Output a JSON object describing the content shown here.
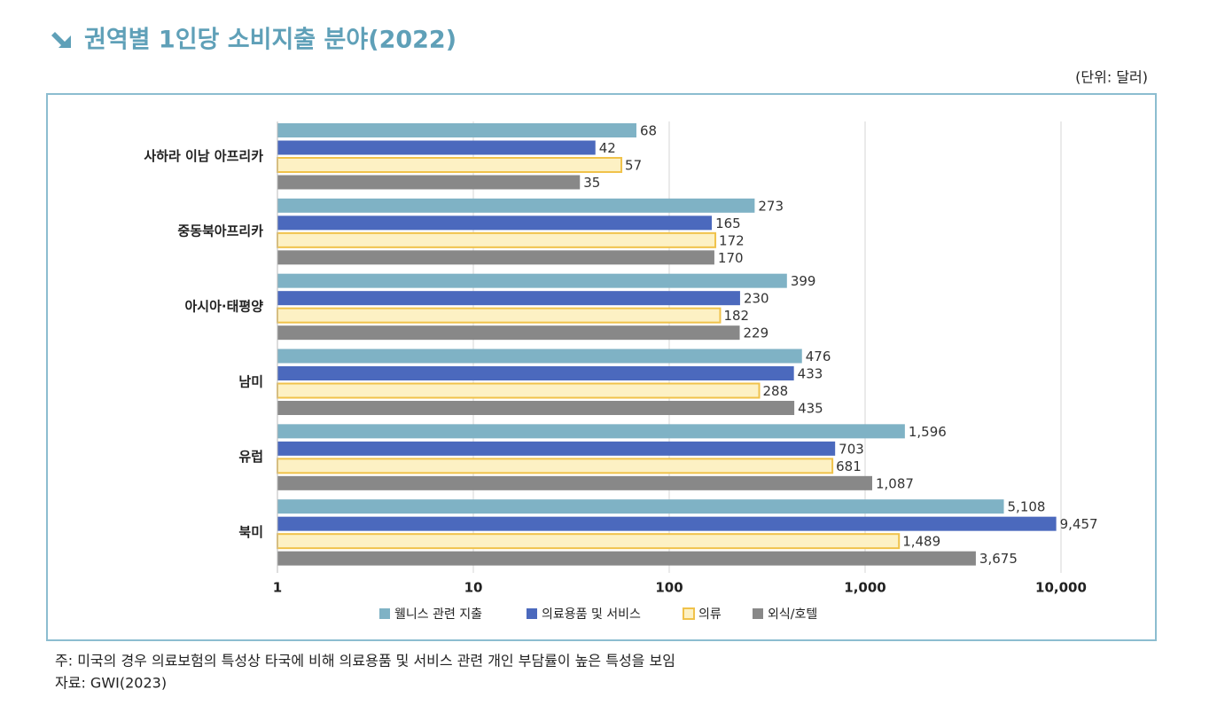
{
  "chart_data": {
    "type": "barh",
    "title": "권역별 1인당 소비지출 분야(2022)",
    "unit": "(단위: 달러)",
    "note": "주: 미국의 경우 의료보험의 특성상 타국에 비해 의료용품 및 서비스 관련 개인 부담률이 높은 특성을 보임",
    "source": "자료: GWI(2023)",
    "categories": [
      "사하라 이남 아프리카",
      "중동북아프리카",
      "아시아·태평양",
      "남미",
      "유럽",
      "북미"
    ],
    "series": [
      {
        "name": "웰니스 관련 지출",
        "color": "#7fb2c5",
        "values": [
          68,
          273,
          399,
          476,
          1596,
          5108
        ],
        "value_labels": [
          "68",
          "273",
          "399",
          "476",
          "1,596",
          "5,108"
        ]
      },
      {
        "name": "의료용품 및 서비스",
        "color": "#4b69bd",
        "values": [
          42,
          165,
          230,
          433,
          703,
          9457
        ],
        "value_labels": [
          "42",
          "165",
          "230",
          "433",
          "703",
          "9,457"
        ]
      },
      {
        "name": "의류",
        "color": "#fdf1c4",
        "edgecolor": "#f0c24a",
        "values": [
          57,
          172,
          182,
          288,
          681,
          1489
        ],
        "value_labels": [
          "57",
          "172",
          "182",
          "288",
          "681",
          "1,489"
        ]
      },
      {
        "name": "외식/호텔",
        "color": "#888888",
        "values": [
          35,
          170,
          229,
          435,
          1087,
          3675
        ],
        "value_labels": [
          "35",
          "170",
          "229",
          "435",
          "1,087",
          "3,675"
        ]
      }
    ],
    "xscale": "log",
    "xlim": [
      1,
      10000
    ],
    "xticks": [
      1,
      10,
      100,
      {
        "value": 1000,
        "label": "1,000"
      },
      {
        "value": 10000,
        "label": "10,000"
      }
    ],
    "grid": true,
    "legend": "bottom"
  }
}
